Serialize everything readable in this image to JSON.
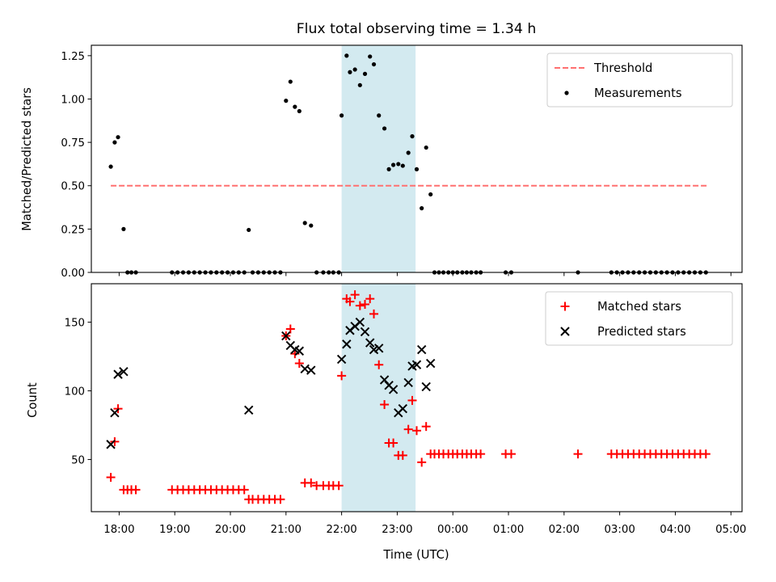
{
  "figure_title": "Flux total observing time = 1.34 h",
  "colors": {
    "threshold": "#ff7070",
    "measurements": "#000000",
    "matched": "#ff0000",
    "predicted": "#000000",
    "highlight": "#a7d6e2"
  },
  "chart_data": [
    {
      "type": "scatter",
      "title": "Flux total observing time = 1.34 h",
      "xlabel": "",
      "ylabel": "Matched/Predicted stars",
      "xlim": [
        17.5,
        29.2
      ],
      "ylim": [
        0,
        1.31
      ],
      "yticks": [
        0.0,
        0.25,
        0.5,
        0.75,
        1.0,
        1.25
      ],
      "ytick_labels": [
        "0.00",
        "0.25",
        "0.50",
        "0.75",
        "1.00",
        "1.25"
      ],
      "highlight_span": [
        22.0,
        23.33
      ],
      "legend": {
        "location": "upper right",
        "entries": [
          "Threshold",
          "Measurements"
        ]
      },
      "series": [
        {
          "name": "Threshold",
          "kind": "dashed-line",
          "x": [
            17.85,
            28.6
          ],
          "y": [
            0.5,
            0.5
          ]
        },
        {
          "name": "Measurements",
          "kind": "points",
          "x": [
            17.85,
            17.92,
            17.98,
            18.08,
            18.15,
            18.22,
            18.3,
            18.95,
            19.05,
            19.15,
            19.25,
            19.35,
            19.45,
            19.55,
            19.65,
            19.75,
            19.85,
            19.95,
            20.05,
            20.15,
            20.25,
            20.33,
            20.4,
            20.5,
            20.6,
            20.7,
            20.8,
            20.9,
            21.0,
            21.08,
            21.16,
            21.24,
            21.34,
            21.45,
            21.55,
            21.67,
            21.77,
            21.85,
            21.95,
            22.0,
            22.09,
            22.15,
            22.24,
            22.33,
            22.42,
            22.51,
            22.58,
            22.67,
            22.77,
            22.85,
            22.93,
            23.02,
            23.1,
            23.2,
            23.27,
            23.35,
            23.44,
            23.52,
            23.6,
            23.67,
            23.75,
            23.83,
            23.92,
            24.0,
            24.08,
            24.17,
            24.25,
            24.33,
            24.42,
            24.5,
            24.95,
            25.05,
            26.25,
            26.85,
            26.95,
            27.05,
            27.15,
            27.25,
            27.35,
            27.45,
            27.55,
            27.65,
            27.75,
            27.85,
            27.95,
            28.05,
            28.15,
            28.25,
            28.35,
            28.45,
            28.55
          ],
          "y": [
            0.61,
            0.75,
            0.78,
            0.25,
            0.0,
            0.0,
            0.0,
            0.0,
            0.0,
            0.0,
            0.0,
            0.0,
            0.0,
            0.0,
            0.0,
            0.0,
            0.0,
            0.0,
            0.0,
            0.0,
            0.0,
            0.245,
            0.0,
            0.0,
            0.0,
            0.0,
            0.0,
            0.0,
            0.99,
            1.1,
            0.955,
            0.93,
            0.285,
            0.27,
            0.0,
            0.0,
            0.0,
            0.0,
            0.0,
            0.905,
            1.25,
            1.155,
            1.17,
            1.08,
            1.145,
            1.245,
            1.2,
            0.905,
            0.83,
            0.595,
            0.62,
            0.625,
            0.615,
            0.69,
            0.785,
            0.595,
            0.37,
            0.72,
            0.45,
            0.0,
            0.0,
            0.0,
            0.0,
            0.0,
            0.0,
            0.0,
            0.0,
            0.0,
            0.0,
            0.0,
            0.0,
            0.0,
            0.0,
            0.0,
            0.0,
            0.0,
            0.0,
            0.0,
            0.0,
            0.0,
            0.0,
            0.0,
            0.0,
            0.0,
            0.0,
            0.0,
            0.0,
            0.0,
            0.0,
            0.0,
            0.0
          ]
        }
      ]
    },
    {
      "type": "scatter",
      "title": "",
      "xlabel": "Time (UTC)",
      "ylabel": "Count",
      "xlim": [
        17.5,
        29.2
      ],
      "ylim": [
        12,
        178
      ],
      "yticks": [
        50,
        100,
        150
      ],
      "ytick_labels": [
        "50",
        "100",
        "150"
      ],
      "xticks": [
        18,
        19,
        20,
        21,
        22,
        23,
        24,
        25,
        26,
        27,
        28,
        29
      ],
      "xtick_labels": [
        "18:00",
        "19:00",
        "20:00",
        "21:00",
        "22:00",
        "23:00",
        "00:00",
        "01:00",
        "02:00",
        "03:00",
        "04:00",
        "05:00"
      ],
      "highlight_span": [
        22.0,
        23.33
      ],
      "legend": {
        "location": "upper right",
        "entries": [
          "Matched stars",
          "Predicted stars"
        ]
      },
      "series": [
        {
          "name": "Matched stars",
          "marker": "+",
          "x": [
            17.85,
            17.92,
            17.98,
            18.08,
            18.15,
            18.22,
            18.3,
            18.95,
            19.05,
            19.15,
            19.25,
            19.35,
            19.45,
            19.55,
            19.65,
            19.75,
            19.85,
            19.95,
            20.05,
            20.15,
            20.25,
            20.33,
            20.4,
            20.5,
            20.6,
            20.7,
            20.8,
            20.9,
            21.0,
            21.08,
            21.16,
            21.24,
            21.34,
            21.45,
            21.55,
            21.67,
            21.77,
            21.85,
            21.95,
            22.0,
            22.09,
            22.15,
            22.24,
            22.33,
            22.42,
            22.51,
            22.58,
            22.67,
            22.77,
            22.85,
            22.93,
            23.02,
            23.1,
            23.2,
            23.27,
            23.35,
            23.44,
            23.52,
            23.6,
            23.67,
            23.75,
            23.83,
            23.92,
            24.0,
            24.08,
            24.17,
            24.25,
            24.33,
            24.42,
            24.5,
            24.95,
            25.05,
            26.25,
            26.85,
            26.95,
            27.05,
            27.15,
            27.25,
            27.35,
            27.45,
            27.55,
            27.65,
            27.75,
            27.85,
            27.95,
            28.05,
            28.15,
            28.25,
            28.35,
            28.45,
            28.55
          ],
          "y": [
            37,
            63,
            87,
            28,
            28,
            28,
            28,
            28,
            28,
            28,
            28,
            28,
            28,
            28,
            28,
            28,
            28,
            28,
            28,
            28,
            28,
            21,
            21,
            21,
            21,
            21,
            21,
            21,
            140,
            145,
            127,
            120,
            33,
            33,
            31,
            31,
            31,
            31,
            31,
            111,
            167,
            165,
            170,
            162,
            163,
            167,
            156,
            119,
            90,
            62,
            62,
            53,
            53,
            72,
            93,
            71,
            48,
            74,
            54,
            54,
            54,
            54,
            54,
            54,
            54,
            54,
            54,
            54,
            54,
            54,
            54,
            54,
            54,
            54,
            54,
            54,
            54,
            54,
            54,
            54,
            54,
            54,
            54,
            54,
            54,
            54,
            54,
            54,
            54,
            54,
            54
          ]
        },
        {
          "name": "Predicted stars",
          "marker": "x",
          "x": [
            17.85,
            17.92,
            17.98,
            18.08,
            20.33,
            21.0,
            21.08,
            21.16,
            21.24,
            21.34,
            21.45,
            22.0,
            22.09,
            22.15,
            22.24,
            22.33,
            22.42,
            22.51,
            22.58,
            22.67,
            22.77,
            22.85,
            22.93,
            23.02,
            23.1,
            23.2,
            23.27,
            23.35,
            23.44,
            23.52,
            23.6
          ],
          "y": [
            61,
            84,
            112,
            114,
            86,
            140,
            133,
            130,
            129,
            116,
            115,
            123,
            134,
            144,
            147,
            150,
            143,
            135,
            130,
            131,
            108,
            104,
            101,
            84,
            87,
            106,
            118,
            119,
            130,
            103,
            120
          ]
        }
      ]
    }
  ]
}
